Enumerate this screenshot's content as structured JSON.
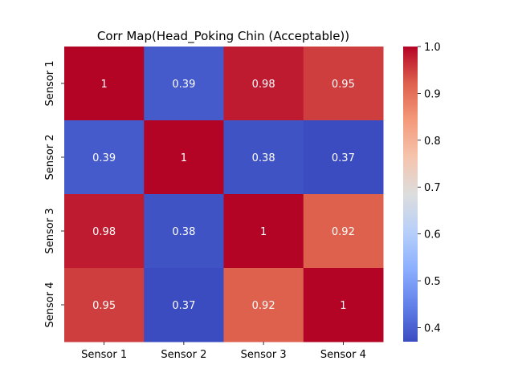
{
  "chart_data": {
    "type": "heatmap",
    "title": "Corr Map(Head_Poking Chin (Acceptable))",
    "x_labels": [
      "Sensor 1",
      "Sensor 2",
      "Sensor 3",
      "Sensor 4"
    ],
    "y_labels": [
      "Sensor 1",
      "Sensor 2",
      "Sensor 3",
      "Sensor 4"
    ],
    "values": [
      [
        1,
        0.39,
        0.98,
        0.95
      ],
      [
        0.39,
        1,
        0.38,
        0.37
      ],
      [
        0.98,
        0.38,
        1,
        0.92
      ],
      [
        0.95,
        0.37,
        0.92,
        1
      ]
    ],
    "annotations": [
      [
        "1",
        "0.39",
        "0.98",
        "0.95"
      ],
      [
        "0.39",
        "1",
        "0.38",
        "0.37"
      ],
      [
        "0.98",
        "0.38",
        "1",
        "0.92"
      ],
      [
        "0.95",
        "0.37",
        "0.92",
        "1"
      ]
    ],
    "colormap": "coolwarm",
    "vmin": 0.37,
    "vmax": 1.0,
    "colorbar_ticks": [
      0.4,
      0.5,
      0.6,
      0.7,
      0.8,
      0.9,
      1.0
    ],
    "colorbar_tick_labels": [
      "0.4",
      "0.5",
      "0.6",
      "0.7",
      "0.8",
      "0.9",
      "1.0"
    ]
  }
}
